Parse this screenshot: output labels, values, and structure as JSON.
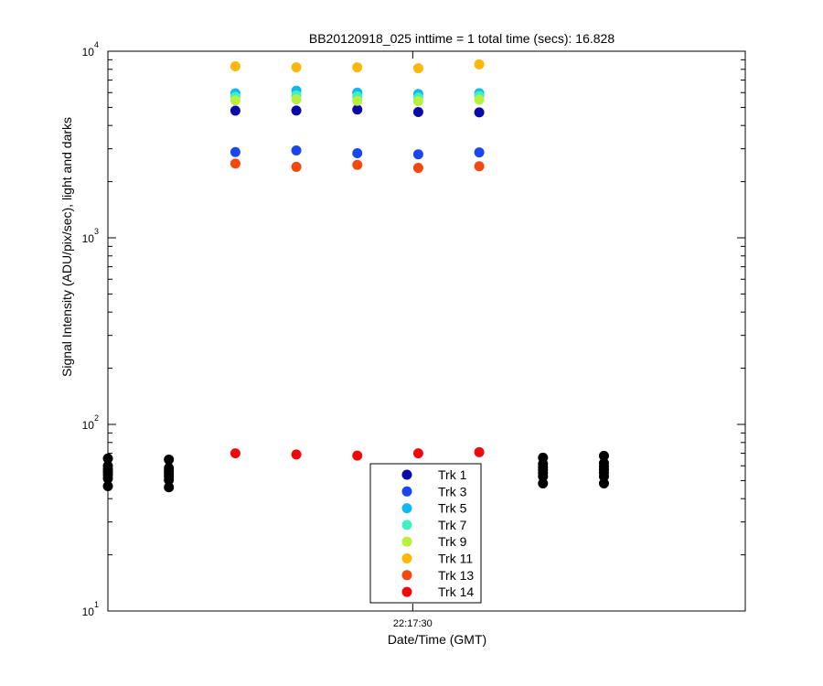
{
  "chart_data": {
    "type": "scatter",
    "title": "BB20120918_025 inttime = 1 total time (secs): 16.828",
    "xlabel": "Date/Time (GMT)",
    "ylabel": "Signal Intensity (ADU/pix/sec), light and darks",
    "y_scale": "log",
    "ylim": [
      10,
      10000
    ],
    "xlim": [
      "22:17:19.0",
      "22:17:42.0"
    ],
    "x_ticks": [
      {
        "value": "22:17:30.0",
        "label": "22:17:30"
      }
    ],
    "y_ticks": [
      {
        "value": 10,
        "base": "10",
        "exp": "1"
      },
      {
        "value": 100,
        "base": "10",
        "exp": "2"
      },
      {
        "value": 1000,
        "base": "10",
        "exp": "3"
      },
      {
        "value": 10000,
        "base": "10",
        "exp": "4"
      }
    ],
    "grid": false,
    "legend_position": "bottom-center",
    "light_times": [
      "22:17:23.6",
      "22:17:25.8",
      "22:17:28.0",
      "22:17:30.2",
      "22:17:32.4"
    ],
    "series": [
      {
        "name": "Trk 1",
        "color": "#0a0aa8",
        "values": [
          4800,
          4810,
          4870,
          4720,
          4700
        ]
      },
      {
        "name": "Trk 3",
        "color": "#1a46f0",
        "values": [
          2880,
          2940,
          2840,
          2800,
          2870
        ]
      },
      {
        "name": "Trk 5",
        "color": "#0fb8ee",
        "values": [
          5950,
          6150,
          6000,
          5900,
          5960
        ]
      },
      {
        "name": "Trk 7",
        "color": "#40f0c0",
        "values": [
          5700,
          5800,
          5720,
          5650,
          5760
        ]
      },
      {
        "name": "Trk 9",
        "color": "#b8f040",
        "values": [
          5450,
          5520,
          5420,
          5400,
          5500
        ]
      },
      {
        "name": "Trk 11",
        "color": "#fdb60a",
        "values": [
          8300,
          8200,
          8200,
          8100,
          8500
        ]
      },
      {
        "name": "Trk 13",
        "color": "#f24a0e",
        "values": [
          2500,
          2400,
          2460,
          2370,
          2420
        ]
      },
      {
        "name": "Trk 14",
        "color": "#ee0a0a",
        "values": [
          70,
          69,
          68,
          70,
          71
        ]
      }
    ],
    "darks": {
      "color": "#000000",
      "points": [
        {
          "x": "22:17:19.0",
          "values": [
            46.7,
            51.3,
            53.6,
            55.6,
            57.6,
            60.0,
            65.7
          ]
        },
        {
          "x": "22:17:21.2",
          "values": [
            46.0,
            50.4,
            52.6,
            54.5,
            56.4,
            58.4,
            64.8
          ]
        },
        {
          "x": "22:17:34.7",
          "values": [
            48.3,
            52.6,
            54.9,
            57.0,
            59.1,
            61.4,
            66.3
          ]
        },
        {
          "x": "22:17:36.9",
          "values": [
            48.3,
            52.6,
            55.1,
            57.3,
            59.4,
            62.0,
            67.8
          ]
        }
      ]
    }
  }
}
